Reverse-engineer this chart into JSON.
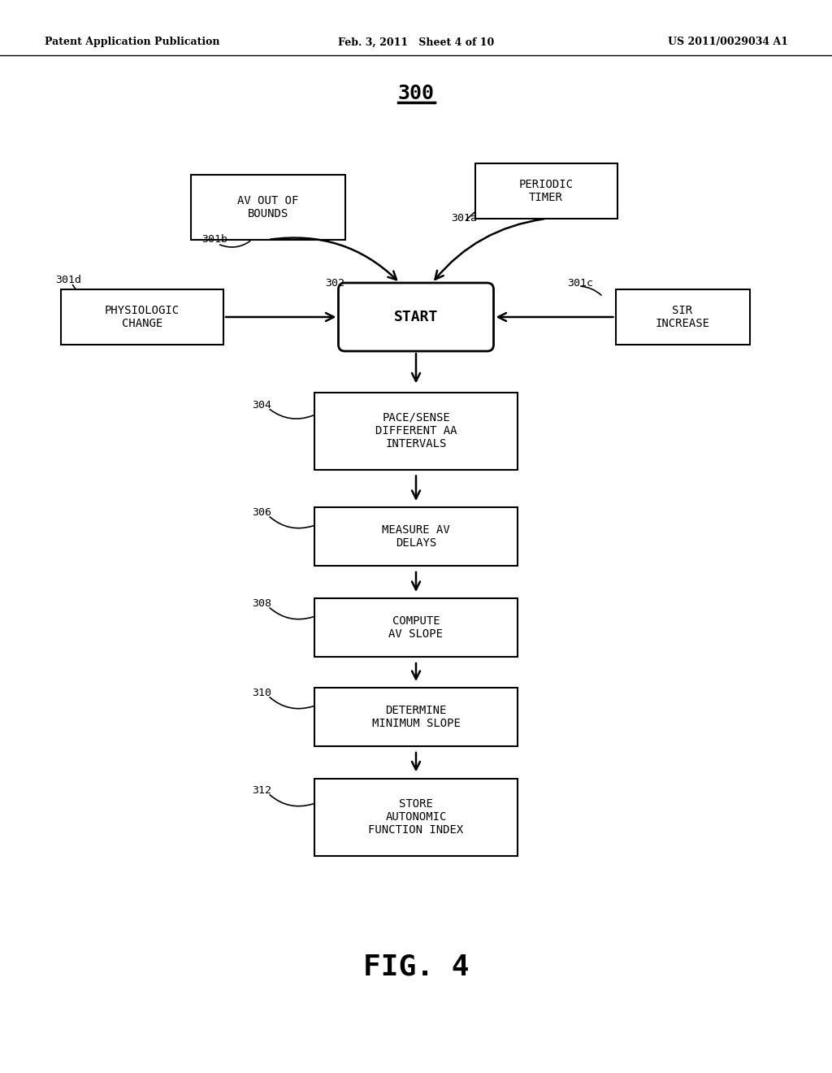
{
  "bg_color": "#ffffff",
  "header_left": "Patent Application Publication",
  "header_center": "Feb. 3, 2011   Sheet 4 of 10",
  "header_right": "US 2011/0029034 A1",
  "diagram_number": "300",
  "fig_label": "FIG. 4"
}
